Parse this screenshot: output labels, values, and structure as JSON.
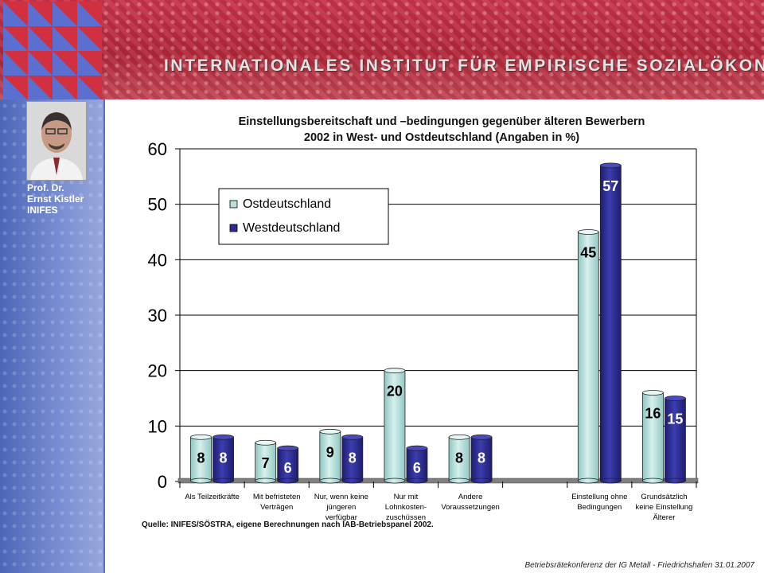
{
  "header": {
    "title": "INTERNATIONALES INSTITUT FÜR EMPIRISCHE SOZIALÖKONOMIE"
  },
  "sidebar": {
    "name_lines": [
      "Prof. Dr.",
      "Ernst Kistler",
      "INIFES"
    ]
  },
  "colors": {
    "header_red": "#b1273a",
    "sidebar_blue": "#6a80cc",
    "ost": "#b6e0dc",
    "west": "#2c2c92"
  },
  "chart_data": {
    "type": "bar",
    "title": "Einstellungsbereitschaft und –bedingungen gegenüber älteren Bewerbern 2002 in West- und Ostdeutschland (Angaben in %)",
    "title_lines": [
      "Einstellungsbereitschaft und –bedingungen gegenüber älteren Bewerbern",
      "2002 in West- und Ostdeutschland (Angaben in %)"
    ],
    "categories": [
      [
        "Als Teilzeitkräfte"
      ],
      [
        "Mit befristeten",
        "Verträgen"
      ],
      [
        "Nur, wenn keine",
        "jüngeren",
        "verfügbar"
      ],
      [
        "Nur mit",
        "Lohnkosten-",
        "zuschüssen"
      ],
      [
        "Andere",
        "Voraussetzungen"
      ],
      [],
      [
        "Einstellung ohne",
        "Bedingungen"
      ],
      [
        "Grundsätzlich",
        "keine Einstellung",
        "Älterer"
      ]
    ],
    "series": [
      {
        "name": "Ostdeutschland",
        "values": [
          8,
          7,
          9,
          20,
          8,
          null,
          45,
          16
        ]
      },
      {
        "name": "Westdeutschland",
        "values": [
          8,
          6,
          8,
          6,
          8,
          null,
          57,
          15
        ]
      }
    ],
    "ylim": [
      0,
      60
    ],
    "yticks": [
      "0",
      "10",
      "20",
      "30",
      "40",
      "50",
      "60"
    ],
    "legend_position": "top-left",
    "grid": true
  },
  "source": "Quelle: INIFES/SÖSTRA, eigene Berechnungen nach IAB-Betriebspanel 2002.",
  "footer": "Betriebsrätekonferenz der IG Metall - Friedrichshafen 31.01.2007"
}
